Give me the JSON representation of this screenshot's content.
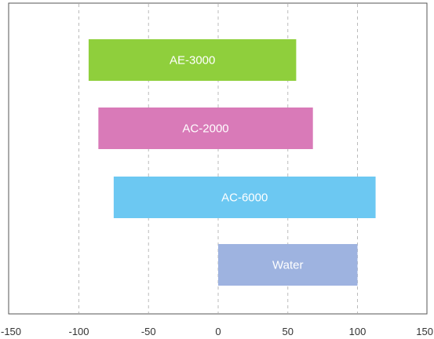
{
  "chart_data": {
    "type": "bar",
    "orientation": "horizontal",
    "style": "floating-range",
    "categories": [
      "AE-3000",
      "AC-2000",
      "AC-6000",
      "Water"
    ],
    "series": [
      {
        "values": [
          [
            -93,
            56
          ],
          [
            -86,
            68
          ],
          [
            -75,
            113
          ],
          [
            0,
            100
          ]
        ]
      }
    ],
    "bar_colors": [
      "#8fcf3c",
      "#d97ab8",
      "#6cc8f2",
      "#9eb3e0"
    ],
    "xlim": [
      -150,
      150
    ],
    "xticks": [
      -150,
      -100,
      -50,
      0,
      50,
      100,
      150
    ],
    "xtick_labels": [
      "-150",
      "-100",
      "-50",
      "0",
      "50",
      "100",
      "150"
    ],
    "grid": "x-dashed",
    "legend": "none",
    "title": "",
    "xlabel": "",
    "ylabel": ""
  }
}
